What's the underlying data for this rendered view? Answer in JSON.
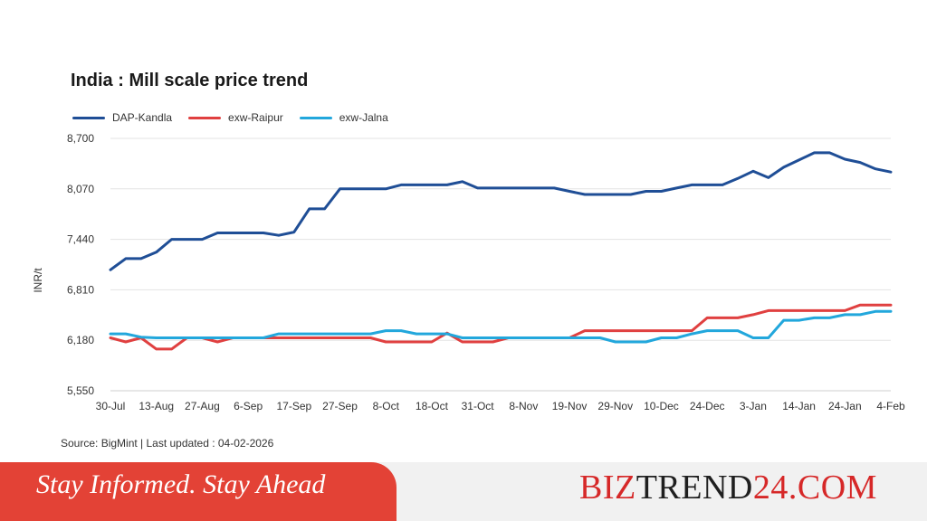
{
  "chart_data": {
    "type": "line",
    "title": "India : Mill scale price trend",
    "ylabel": "INR/t",
    "xlabel": "",
    "ylim": [
      5550,
      8700
    ],
    "yticks": [
      "8,700",
      "8,070",
      "7,440",
      "6,810",
      "6,180",
      "5,550"
    ],
    "ytick_values": [
      8700,
      8070,
      7440,
      6810,
      6180,
      5550
    ],
    "xtick_labels": [
      "30-Jul",
      "13-Aug",
      "27-Aug",
      "6-Sep",
      "17-Sep",
      "27-Sep",
      "8-Oct",
      "18-Oct",
      "31-Oct",
      "8-Nov",
      "19-Nov",
      "29-Nov",
      "10-Dec",
      "24-Dec",
      "3-Jan",
      "14-Jan",
      "24-Jan",
      "4-Feb"
    ],
    "xtick_index": [
      0,
      3,
      6,
      9,
      12,
      15,
      18,
      21,
      24,
      27,
      30,
      33,
      36,
      39,
      42,
      45,
      48,
      51
    ],
    "grid": "horizontal",
    "legend_position": "top-left",
    "series": [
      {
        "name": "DAP-Kandla",
        "color": "#1f4e96",
        "values": [
          7060,
          7200,
          7200,
          7280,
          7440,
          7440,
          7440,
          7520,
          7520,
          7520,
          7520,
          7490,
          7530,
          7820,
          7820,
          8070,
          8070,
          8070,
          8070,
          8120,
          8120,
          8120,
          8120,
          8160,
          8080,
          8080,
          8080,
          8080,
          8080,
          8080,
          8040,
          8000,
          8000,
          8000,
          8000,
          8040,
          8040,
          8080,
          8120,
          8120,
          8120,
          8200,
          8290,
          8210,
          8340,
          8430,
          8520,
          8520,
          8440,
          8400,
          8320,
          8280
        ]
      },
      {
        "name": "exw-Raipur",
        "color": "#e04040",
        "values": [
          6210,
          6160,
          6210,
          6070,
          6070,
          6210,
          6210,
          6160,
          6210,
          6210,
          6210,
          6210,
          6210,
          6210,
          6210,
          6210,
          6210,
          6210,
          6160,
          6160,
          6160,
          6160,
          6270,
          6160,
          6160,
          6160,
          6210,
          6210,
          6210,
          6210,
          6210,
          6300,
          6300,
          6300,
          6300,
          6300,
          6300,
          6300,
          6300,
          6460,
          6460,
          6460,
          6500,
          6550,
          6550,
          6550,
          6550,
          6550,
          6550,
          6620,
          6620,
          6620
        ]
      },
      {
        "name": "exw-Jalna",
        "color": "#22a7dc",
        "values": [
          6260,
          6260,
          6220,
          6210,
          6210,
          6210,
          6210,
          6210,
          6210,
          6210,
          6210,
          6260,
          6260,
          6260,
          6260,
          6260,
          6260,
          6260,
          6300,
          6300,
          6260,
          6260,
          6260,
          6210,
          6210,
          6210,
          6210,
          6210,
          6210,
          6210,
          6210,
          6210,
          6210,
          6160,
          6160,
          6160,
          6210,
          6210,
          6260,
          6300,
          6300,
          6300,
          6210,
          6210,
          6430,
          6430,
          6460,
          6460,
          6500,
          6500,
          6540,
          6540
        ]
      }
    ]
  },
  "source_text": "Source: BigMint | Last updated : 04-02-2026",
  "banner": {
    "tagline": "Stay Informed. Stay Ahead",
    "brand_part1": "BIZ",
    "brand_part2": "TREND",
    "brand_part3": "24.COM"
  },
  "colors": {
    "banner_red": "#e34236",
    "brand_red": "#d62828",
    "brand_dark": "#1f1f1f"
  }
}
